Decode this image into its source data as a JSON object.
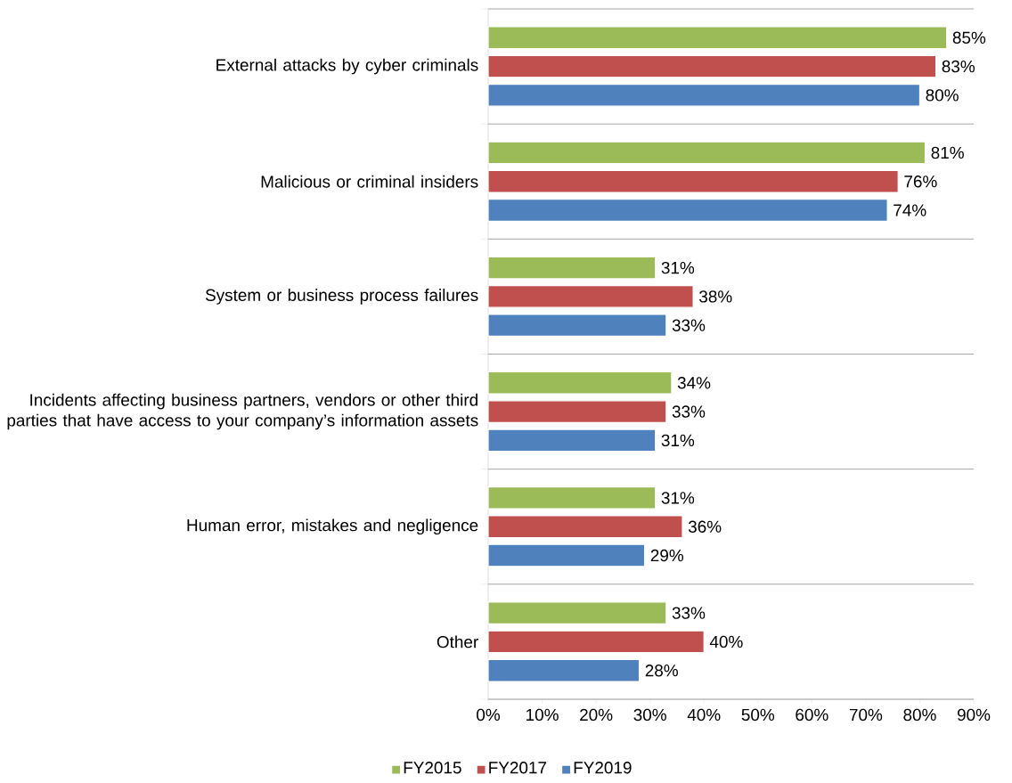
{
  "chart_data": {
    "type": "bar",
    "orientation": "horizontal",
    "categories": [
      "External attacks by cyber criminals",
      "Malicious or criminal insiders",
      "System or business process failures",
      "Incidents affecting business partners, vendors or other third parties that have access to your company’s information assets",
      "Human error, mistakes and negligence",
      "Other"
    ],
    "series": [
      {
        "name": "FY2015",
        "color": "#9bbb59",
        "values": [
          85,
          81,
          31,
          34,
          31,
          33
        ],
        "value_labels": [
          "85%",
          "81%",
          "31%",
          "34%",
          "31%",
          "33%"
        ]
      },
      {
        "name": "FY2017",
        "color": "#c0504d",
        "values": [
          83,
          76,
          38,
          33,
          36,
          40
        ],
        "value_labels": [
          "83%",
          "76%",
          "38%",
          "33%",
          "36%",
          "40%"
        ]
      },
      {
        "name": "FY2019",
        "color": "#4f81bd",
        "values": [
          80,
          74,
          33,
          31,
          29,
          28
        ],
        "value_labels": [
          "80%",
          "74%",
          "33%",
          "31%",
          "29%",
          "28%"
        ]
      }
    ],
    "xlim": [
      0,
      90
    ],
    "xticks": [
      {
        "value": 0,
        "label": "0%"
      },
      {
        "value": 10,
        "label": "10%"
      },
      {
        "value": 20,
        "label": "20%"
      },
      {
        "value": 30,
        "label": "30%"
      },
      {
        "value": 40,
        "label": "40%"
      },
      {
        "value": 50,
        "label": "50%"
      },
      {
        "value": 60,
        "label": "60%"
      },
      {
        "value": 70,
        "label": "70%"
      },
      {
        "value": 80,
        "label": "80%"
      },
      {
        "value": 90,
        "label": "90%"
      }
    ],
    "grid": "y",
    "legend": "bottom"
  }
}
